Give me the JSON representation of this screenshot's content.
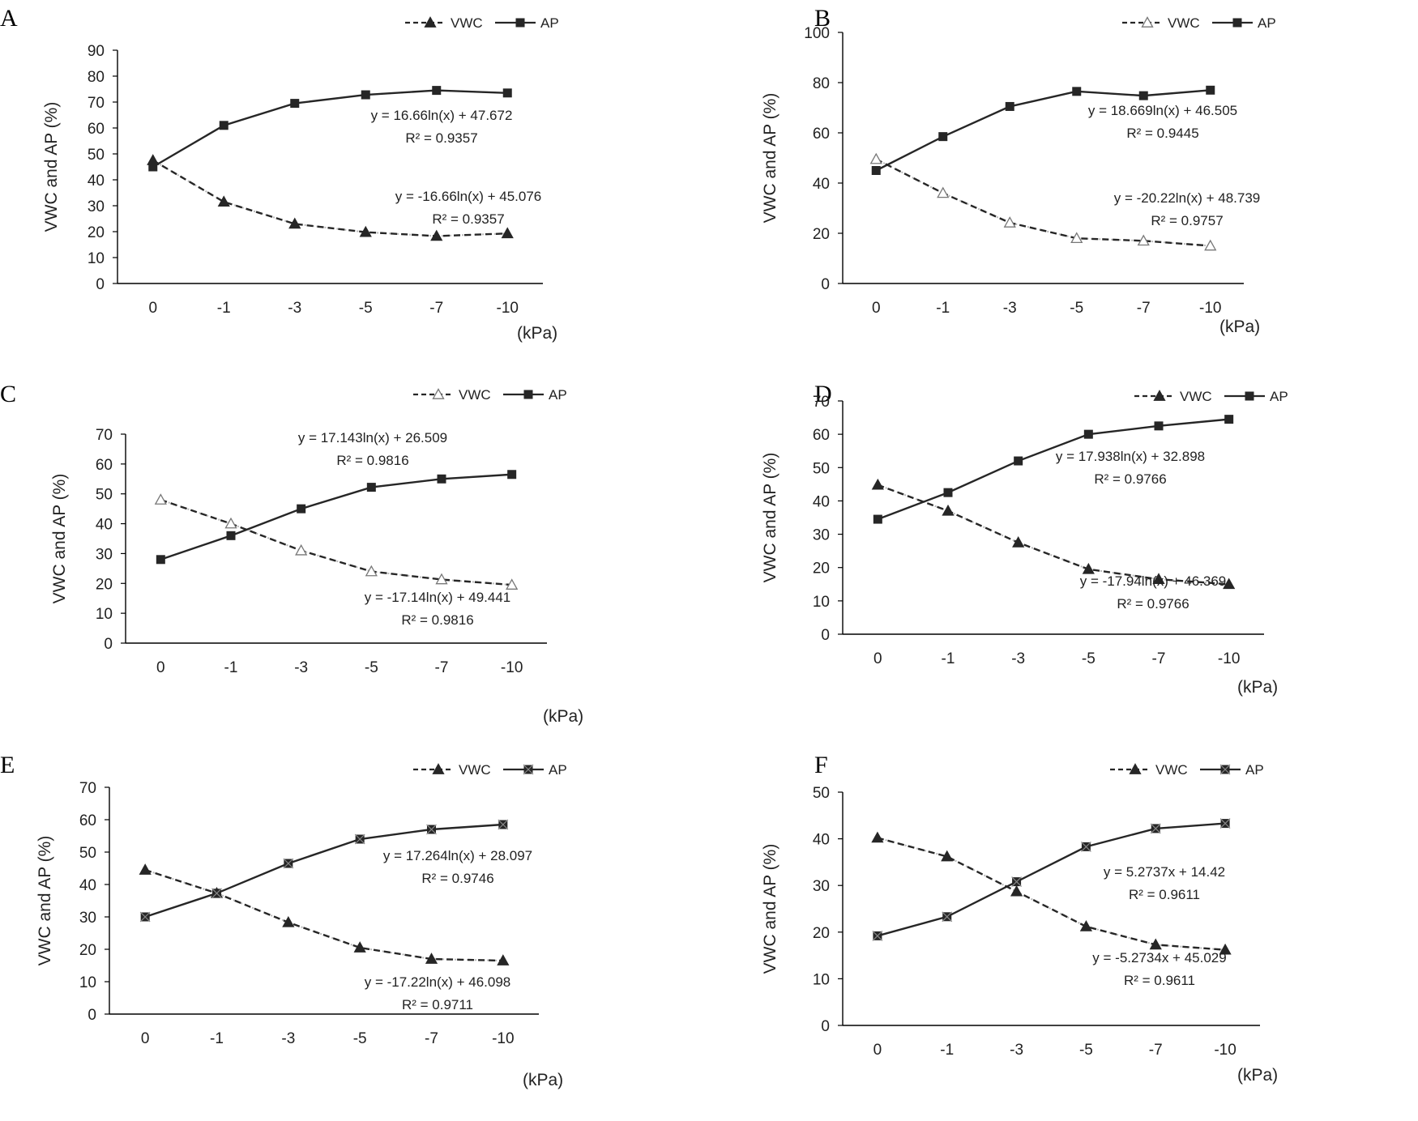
{
  "colors": {
    "line": "#262626",
    "trend": "#b8b8b8",
    "axis": "#000000",
    "text": "#222222"
  },
  "chart_data": [
    {
      "panel": "A",
      "type": "line",
      "categories": [
        "0",
        "-1",
        "-3",
        "-5",
        "-7",
        "-10"
      ],
      "xunit": "(kPa)",
      "ylabel": "VWC and AP (%)",
      "ylim": [
        0,
        90
      ],
      "yticks": [
        "0",
        "10",
        "20",
        "30",
        "40",
        "50",
        "60",
        "70",
        "80",
        "90"
      ],
      "series": [
        {
          "name": "VWC",
          "style": "dashed",
          "marker": "triangle-filled",
          "values": [
            47.5,
            31.5,
            23,
            19.8,
            18.3,
            19.3
          ],
          "equation": "y = -16.66ln(x) + 45.076",
          "r2": "R² = 0.9357"
        },
        {
          "name": "AP",
          "style": "solid",
          "marker": "square",
          "values": [
            45,
            61,
            69.5,
            72.8,
            74.5,
            73.5
          ],
          "equation": "y = 16.66ln(x) + 47.672",
          "r2": "R² = 0.9357"
        }
      ],
      "legend": [
        "VWC",
        "AP"
      ]
    },
    {
      "panel": "B",
      "type": "line",
      "categories": [
        "0",
        "-1",
        "-3",
        "-5",
        "-7",
        "-10"
      ],
      "xunit": "(kPa)",
      "ylabel": "VWC and AP (%)",
      "ylim": [
        0,
        100
      ],
      "yticks": [
        "0",
        "20",
        "40",
        "60",
        "80",
        "100"
      ],
      "series": [
        {
          "name": "VWC",
          "style": "dashed",
          "marker": "triangle-open",
          "values": [
            49.5,
            36,
            24.2,
            18,
            17,
            15
          ],
          "equation": "y = -20.22ln(x) + 48.739",
          "r2": "R² = 0.9757"
        },
        {
          "name": "AP",
          "style": "solid",
          "marker": "square",
          "values": [
            45,
            58.5,
            70.5,
            76.5,
            74.8,
            77
          ],
          "equation": "y = 18.669ln(x) + 46.505",
          "r2": "R² = 0.9445"
        }
      ],
      "legend": [
        "VWC",
        "AP"
      ]
    },
    {
      "panel": "C",
      "type": "line",
      "categories": [
        "0",
        "-1",
        "-3",
        "-5",
        "-7",
        "-10"
      ],
      "xunit": "(kPa)",
      "ylabel": "VWC and AP (%)",
      "ylim": [
        0,
        70
      ],
      "yticks": [
        "0",
        "10",
        "20",
        "30",
        "40",
        "50",
        "60",
        "70"
      ],
      "series": [
        {
          "name": "VWC",
          "style": "dashed",
          "marker": "triangle-open",
          "values": [
            48,
            40,
            31,
            24,
            21.3,
            19.5
          ],
          "equation": "y = -17.14ln(x) + 49.441",
          "r2": "R² = 0.9816"
        },
        {
          "name": "AP",
          "style": "solid",
          "marker": "square",
          "values": [
            28,
            36,
            45,
            52.2,
            55,
            56.5
          ],
          "equation": "y = 17.143ln(x) + 26.509",
          "r2": "R² = 0.9816"
        }
      ],
      "legend": [
        "VWC",
        "AP"
      ]
    },
    {
      "panel": "D",
      "type": "line",
      "categories": [
        "0",
        "-1",
        "-3",
        "-5",
        "-7",
        "-10"
      ],
      "xunit": "(kPa)",
      "ylabel": "VWC and AP (%)",
      "ylim": [
        0,
        70
      ],
      "yticks": [
        "0",
        "10",
        "20",
        "30",
        "40",
        "50",
        "60",
        "70"
      ],
      "series": [
        {
          "name": "VWC",
          "style": "dashed",
          "marker": "triangle-filled",
          "values": [
            44.8,
            37,
            27.5,
            19.5,
            16.5,
            15
          ],
          "equation": "y = -17.94ln(x) + 46.369",
          "r2": "R² = 0.9766"
        },
        {
          "name": "AP",
          "style": "solid",
          "marker": "square",
          "values": [
            34.5,
            42.5,
            52,
            60,
            62.5,
            64.5
          ],
          "equation": "y = 17.938ln(x) + 32.898",
          "r2": "R² = 0.9766"
        }
      ],
      "legend": [
        "VWC",
        "AP"
      ]
    },
    {
      "panel": "E",
      "type": "line",
      "categories": [
        "0",
        "-1",
        "-3",
        "-5",
        "-7",
        "-10"
      ],
      "xunit": "(kPa)",
      "ylabel": "VWC and AP (%)",
      "ylim": [
        0,
        70
      ],
      "yticks": [
        "0",
        "10",
        "20",
        "30",
        "40",
        "50",
        "60",
        "70"
      ],
      "series": [
        {
          "name": "VWC",
          "style": "dashed",
          "marker": "triangle-filled",
          "values": [
            44.5,
            37.3,
            28.3,
            20.5,
            17,
            16.5
          ],
          "equation": "y = -17.22ln(x) + 46.098",
          "r2": "R² = 0.9711"
        },
        {
          "name": "AP",
          "style": "solid",
          "marker": "square-x",
          "values": [
            30,
            37.3,
            46.5,
            54,
            57,
            58.5
          ],
          "equation": "y = 17.264ln(x) + 28.097",
          "r2": "R² = 0.9746"
        }
      ],
      "legend": [
        "VWC",
        "AP"
      ]
    },
    {
      "panel": "F",
      "type": "line",
      "categories": [
        "0",
        "-1",
        "-3",
        "-5",
        "-7",
        "-10"
      ],
      "xunit": "(kPa)",
      "ylabel": "VWC and AP (%)",
      "ylim": [
        0,
        50
      ],
      "yticks": [
        "0",
        "10",
        "20",
        "30",
        "40",
        "50"
      ],
      "series": [
        {
          "name": "VWC",
          "style": "dashed",
          "marker": "triangle-filled",
          "values": [
            40.2,
            36.2,
            28.7,
            21.2,
            17.3,
            16.2
          ],
          "equation": "y = -5.2734x + 45.029",
          "r2": "R² = 0.9611"
        },
        {
          "name": "AP",
          "style": "solid",
          "marker": "square-x",
          "values": [
            19.2,
            23.3,
            30.8,
            38.3,
            42.2,
            43.3
          ],
          "equation": "y = 5.2737x + 14.42",
          "r2": "R² = 0.9611"
        }
      ],
      "legend": [
        "VWC",
        "AP"
      ]
    }
  ]
}
